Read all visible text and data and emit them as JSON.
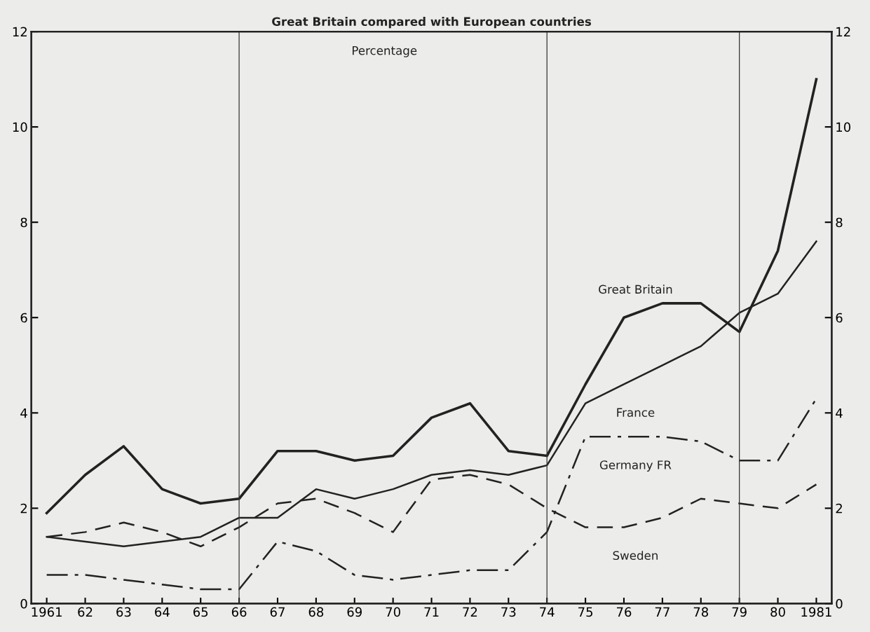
{
  "chart_data": {
    "type": "line",
    "title": "Great Britain compared with European countries",
    "ylabel": "Percentage",
    "categories": [
      "1961",
      "62",
      "63",
      "64",
      "65",
      "66",
      "67",
      "68",
      "69",
      "70",
      "71",
      "72",
      "73",
      "74",
      "75",
      "76",
      "77",
      "78",
      "79",
      "80",
      "1981"
    ],
    "series": [
      {
        "name": "Great Britain",
        "color": "#222222",
        "line_style": "solid",
        "values": [
          1.9,
          2.7,
          3.3,
          2.4,
          2.1,
          2.2,
          3.2,
          3.2,
          3.0,
          3.1,
          3.9,
          4.2,
          3.2,
          3.1,
          4.6,
          6.0,
          6.3,
          6.3,
          5.7,
          7.4,
          11.0
        ]
      },
      {
        "name": "France",
        "color": "#222222",
        "line_style": "solid",
        "values": [
          1.4,
          1.3,
          1.2,
          1.3,
          1.4,
          1.8,
          1.8,
          2.4,
          2.2,
          2.4,
          2.7,
          2.8,
          2.7,
          2.9,
          4.2,
          4.6,
          5.0,
          5.4,
          6.1,
          6.5,
          7.6
        ]
      },
      {
        "name": "Germany FR",
        "color": "#222222",
        "line_style": "dashdot",
        "values": [
          0.6,
          0.6,
          0.5,
          0.4,
          0.3,
          0.3,
          1.3,
          1.1,
          0.6,
          0.5,
          0.6,
          0.7,
          0.7,
          1.5,
          3.5,
          3.5,
          3.5,
          3.4,
          3.0,
          3.0,
          4.3
        ]
      },
      {
        "name": "Sweden",
        "color": "#222222",
        "line_style": "dashed",
        "values": [
          1.4,
          1.5,
          1.7,
          1.5,
          1.2,
          1.6,
          2.1,
          2.2,
          1.9,
          1.5,
          2.6,
          2.7,
          2.5,
          2.0,
          1.6,
          1.6,
          1.8,
          2.2,
          2.1,
          2.0,
          2.5
        ]
      }
    ],
    "ylim": [
      0,
      12
    ],
    "yticks": [
      0,
      2,
      4,
      6,
      8,
      10,
      12
    ],
    "y2lim": [
      0,
      12
    ],
    "y2ticks": [
      0,
      2,
      4,
      6,
      8,
      10,
      12
    ],
    "ref_lines": [
      {
        "axis": "x",
        "value": "66",
        "color": "#333333"
      },
      {
        "axis": "x",
        "value": "74",
        "color": "#333333"
      },
      {
        "axis": "x",
        "value": "79",
        "color": "#333333"
      }
    ],
    "grid": false,
    "legend": false,
    "marker": "none"
  }
}
